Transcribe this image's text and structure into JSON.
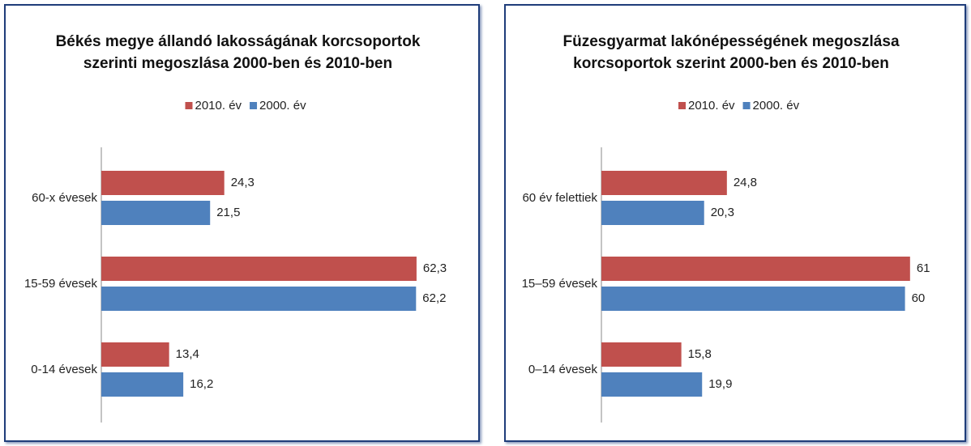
{
  "chart_data": [
    {
      "type": "bar",
      "orientation": "horizontal",
      "title": [
        "Békés megye állandó lakosságának korcsoportok",
        "szerinti megoszlása 2000-ben és 2010-ben"
      ],
      "categories": [
        "60-x évesek",
        "15-59 évesek",
        "0-14 évesek"
      ],
      "series": [
        {
          "name": "2010. év",
          "color": "#c0504d",
          "values": [
            24.3,
            62.3,
            13.4
          ],
          "value_labels": [
            "24,3",
            "62,3",
            "13,4"
          ]
        },
        {
          "name": "2000. év",
          "color": "#4f81bd",
          "values": [
            21.5,
            62.2,
            16.2
          ],
          "value_labels": [
            "21,5",
            "62,2",
            "16,2"
          ]
        }
      ],
      "xlim": [
        0,
        70
      ],
      "legend": "top"
    },
    {
      "type": "bar",
      "orientation": "horizontal",
      "title": [
        "Füzesgyarmat lakónépességének megoszlása",
        "korcsoportok szerint 2000-ben és 2010-ben"
      ],
      "categories": [
        "60 év felettiek",
        "15–59 évesek",
        "0–14 évesek"
      ],
      "series": [
        {
          "name": "2010. év",
          "color": "#c0504d",
          "values": [
            24.8,
            61,
            15.8
          ],
          "value_labels": [
            "24,8",
            "61",
            "15,8"
          ]
        },
        {
          "name": "2000. év",
          "color": "#4f81bd",
          "values": [
            20.3,
            60,
            19.9
          ],
          "value_labels": [
            "20,3",
            "60",
            "19,9"
          ]
        }
      ],
      "xlim": [
        0,
        70
      ],
      "legend": "top"
    }
  ]
}
